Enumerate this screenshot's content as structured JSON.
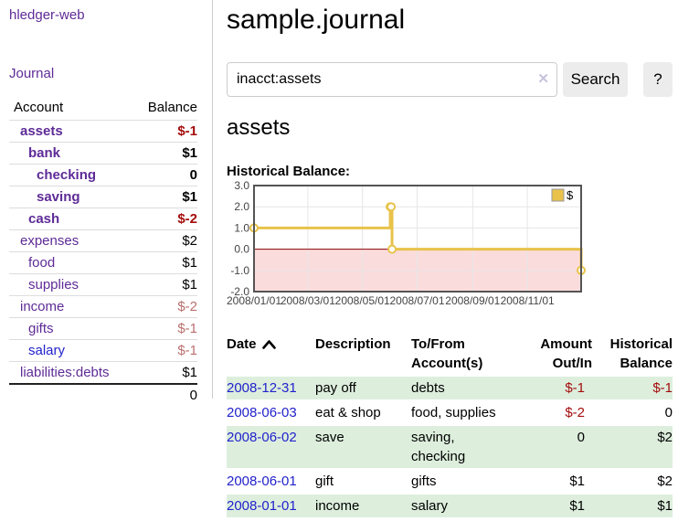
{
  "sidebar": {
    "app_title": "hledger-web",
    "journal_link": "Journal",
    "accounts_table": {
      "headers": {
        "account": "Account",
        "balance": "Balance"
      },
      "rows": [
        {
          "name": "assets",
          "depth": 1,
          "bold": true,
          "balance": "$-1"
        },
        {
          "name": "bank",
          "depth": 2,
          "bold": true,
          "balance": "$1"
        },
        {
          "name": "checking",
          "depth": 3,
          "bold": true,
          "balance": "0"
        },
        {
          "name": "saving",
          "depth": 3,
          "bold": true,
          "balance": "$1"
        },
        {
          "name": "cash",
          "depth": 2,
          "bold": true,
          "balance": "$-2"
        },
        {
          "name": "expenses",
          "depth": 1,
          "bold": false,
          "balance": "$2"
        },
        {
          "name": "food",
          "depth": 2,
          "bold": false,
          "balance": "$1"
        },
        {
          "name": "supplies",
          "depth": 2,
          "bold": false,
          "balance": "$1"
        },
        {
          "name": "income",
          "depth": 1,
          "bold": false,
          "balance": "$-2"
        },
        {
          "name": "gifts",
          "depth": 2,
          "bold": false,
          "balance": "$-1"
        },
        {
          "name": "salary",
          "depth": 2,
          "bold": false,
          "balance": "$-1",
          "link_color": "blue"
        },
        {
          "name": "liabilities:debts",
          "depth": 1,
          "bold": false,
          "balance": "$1"
        }
      ],
      "total": "0"
    }
  },
  "main": {
    "title": "sample.journal",
    "search": {
      "query": "inacct:assets",
      "search_button": "Search",
      "help_button": "?"
    },
    "account_heading": "assets",
    "chart_label": "Historical Balance:",
    "register_table": {
      "headers": {
        "date": "Date",
        "description": "Description",
        "accounts": "To/From Account(s)",
        "amount": "Amount Out/In",
        "balance": "Historical Balance"
      },
      "rows": [
        {
          "date": "2008-12-31",
          "description": "pay off",
          "accounts": "debts",
          "amount": "$-1",
          "balance": "$-1"
        },
        {
          "date": "2008-06-03",
          "description": "eat & shop",
          "accounts": "food, supplies",
          "amount": "$-2",
          "balance": "0"
        },
        {
          "date": "2008-06-02",
          "description": "save",
          "accounts": "saving, checking",
          "amount": "0",
          "balance": "$2"
        },
        {
          "date": "2008-06-01",
          "description": "gift",
          "accounts": "gifts",
          "amount": "$1",
          "balance": "$2"
        },
        {
          "date": "2008-01-01",
          "description": "income",
          "accounts": "salary",
          "amount": "$1",
          "balance": "$1"
        }
      ]
    }
  },
  "icons": {
    "sort_ascending": "chevron-up",
    "clear_search": "✕"
  },
  "colors": {
    "accent_purple": "#5e2b97",
    "link_blue": "#2222cc",
    "negative_strong": "#a40c0c",
    "negative_muted": "#b9706e",
    "row_stripe_green": "#ddeedd",
    "chart_line_gold": "#e8c24a"
  },
  "chart_data": {
    "type": "line",
    "title": "Historical Balance:",
    "step": true,
    "legend_label": "$",
    "legend_position": "top-right",
    "grid": true,
    "series": [
      {
        "name": "$",
        "color": "#e8c24a",
        "points": [
          {
            "date": "2008-01-01",
            "value": 1
          },
          {
            "date": "2008-06-01",
            "value": 2
          },
          {
            "date": "2008-06-02",
            "value": 2
          },
          {
            "date": "2008-06-03",
            "value": 0
          },
          {
            "date": "2008-12-31",
            "value": -1
          }
        ]
      }
    ],
    "xlim": [
      "2008-01-01",
      "2008-12-31"
    ],
    "ylim": [
      -2,
      3
    ],
    "x_ticks": [
      "2008/01/01",
      "2008/03/01",
      "2008/05/01",
      "2008/07/01",
      "2008/09/01",
      "2008/11/01"
    ],
    "y_ticks": [
      "3.0",
      "2.0",
      "1.0",
      "0.0",
      "-1.0",
      "-2.0"
    ],
    "negative_region_color": "#fbdcdc",
    "zero_line_color": "#8b0000",
    "grid_color": "#e6e6e6",
    "border_color": "#545454"
  }
}
